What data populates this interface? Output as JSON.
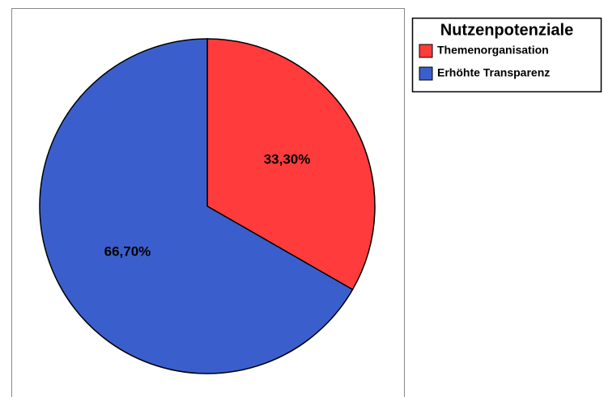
{
  "chart_data": {
    "type": "pie",
    "legend_title": "Nutzenpotenziale",
    "categories": [
      "Themenorganisation",
      "Erhöhte Transparenz"
    ],
    "values": [
      33.3,
      66.7
    ],
    "value_labels": [
      "33,30%",
      "66,70%"
    ],
    "colors": [
      "#ff3b3b",
      "#3a5fcd"
    ]
  }
}
